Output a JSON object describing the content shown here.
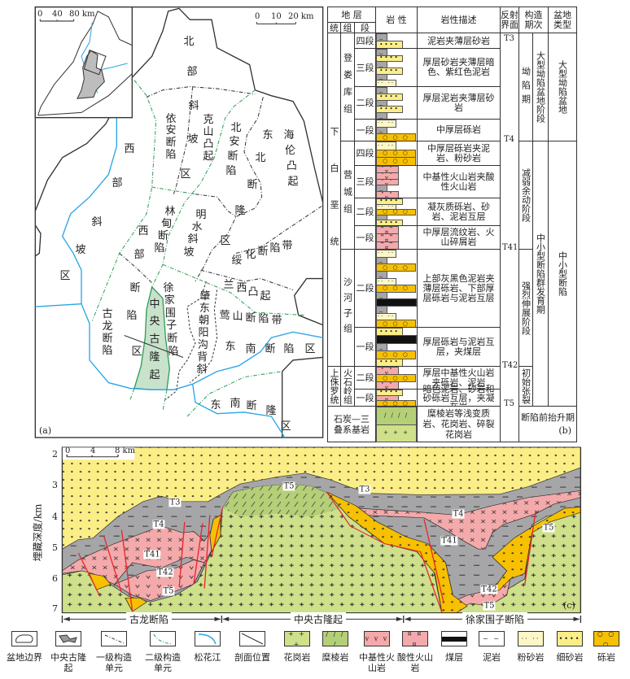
{
  "map": {
    "panel_label": "(a)",
    "inset_scale": [
      "0",
      "40",
      "80 km"
    ],
    "main_scale": [
      "0",
      "10",
      "20 km"
    ],
    "regions": [
      "北部斜坡区",
      "西部斜坡区",
      "依安断陷",
      "克山凸起",
      "北安断陷",
      "东北断隆区",
      "海伦凸起",
      "林甸断陷",
      "明水斜坡",
      "西部断陷区",
      "绥化断陷带",
      "兰西凸起",
      "古龙断陷",
      "中央古隆起",
      "徐家围子断陷",
      "肇东朝阳沟背斜",
      "莺山断陷带",
      "东南断陷区",
      "东南断隆区"
    ]
  },
  "table": {
    "panel_label": "(b)",
    "headers": {
      "strata": "地 层",
      "series": "统",
      "formation": "组",
      "member": "段",
      "lithology": "岩 性",
      "description": "岩性描述",
      "reflector": "反射界面",
      "tectonic": "构造期次",
      "basin_type": "盆地类型"
    },
    "series": [
      "下白垩统",
      "上侏罗统"
    ],
    "formations": [
      "登娄库组",
      "营城组",
      "沙河子组",
      "火石岭组"
    ],
    "rows": [
      {
        "member": "四段",
        "description": "泥岩夹薄层砂岩",
        "lith": [
          "mud",
          "fine"
        ]
      },
      {
        "member": "三段",
        "description": "厚层砂岩夹薄层暗色、紫红色泥岩",
        "lith": [
          "mud",
          "fine",
          "mud",
          "fine",
          "mud",
          "silt"
        ]
      },
      {
        "member": "二段",
        "description": "厚层泥岩夹薄层砂岩",
        "lith": [
          "mud",
          "fine",
          "mud",
          "fine",
          "mud"
        ]
      },
      {
        "member": "一段",
        "description": "中厚层砾岩",
        "lith": [
          "silt",
          "mud",
          "cong"
        ]
      },
      {
        "member": "四段",
        "description": "中厚层砾岩夹泥岩、粉砂岩",
        "lith": [
          "silt",
          "cong",
          "cong"
        ]
      },
      {
        "member": "三段",
        "description": "中基性火山岩夹酸性火山岩",
        "lith": [
          "volc",
          "volc",
          "volc",
          "mud",
          "volc"
        ]
      },
      {
        "member": "二段",
        "description": "凝灰质砾岩、砂岩、泥岩互层",
        "lith": [
          "fine",
          "silt",
          "cong",
          "mud",
          "fine"
        ]
      },
      {
        "member": "一段",
        "description": "中厚层流纹岩、火山碎屑岩",
        "lith": [
          "acid",
          "acid",
          "acid"
        ]
      },
      {
        "member": "二段",
        "description": "上部灰黑色泥岩夹薄层砾岩、下部厚层砾岩与泥岩互层",
        "lith": [
          "silt",
          "mud",
          "cong",
          "mud",
          "silt",
          "cong",
          "mud",
          "coal",
          "mud",
          "silt",
          "cong"
        ]
      },
      {
        "member": "一段",
        "description": "厚层砾岩与泥岩互层，夹煤层",
        "lith": [
          "fine",
          "coal",
          "mud",
          "cong",
          "fine"
        ]
      },
      {
        "member": "二段",
        "description": "厚层中基性火山岩夹砾岩、泥岩",
        "lith": [
          "volc",
          "cong",
          "volc"
        ]
      },
      {
        "member": "一段",
        "description": "暗色泥岩、砂岩和砂砾岩互层，夹凝灰岩",
        "lith": [
          "fine",
          "acid",
          "cong"
        ]
      }
    ],
    "basement": {
      "name": "石炭—三叠系基岩",
      "description": "糜棱岩等浅变质岩、花岗岩、碎裂花岗岩",
      "lith": [
        "mylonite",
        "granite"
      ]
    },
    "reflectors": [
      "T3",
      "T4",
      "T41",
      "T42",
      "T5"
    ],
    "tectonic_periods": [
      "坳陷期",
      "减弱余动阶段",
      "强烈伸展阶段",
      "初始张裂"
    ],
    "tectonic_stages": [
      "大型坳陷盆地阶段",
      "中小型断陷群发育期",
      "断陷前抬升期"
    ],
    "basin_types": [
      "大型坳陷盆地",
      "中小型断陷"
    ]
  },
  "section": {
    "panel_label": "(c)",
    "y_axis_label": "埋藏深度/km",
    "y_ticks": [
      "2",
      "3",
      "4",
      "5",
      "6",
      "7"
    ],
    "scale": [
      "0",
      "4",
      "8 km"
    ],
    "units": [
      "古龙断陷",
      "中央古隆起",
      "徐家围子断陷"
    ],
    "reflector_labels": [
      "T3",
      "T4",
      "T41",
      "T42",
      "T5",
      "T5",
      "T3",
      "T4",
      "T41",
      "T42",
      "T5",
      "T5"
    ]
  },
  "legend": [
    {
      "label": "盆地边界",
      "key": "boundary"
    },
    {
      "label": "中央古隆起",
      "key": "uplift"
    },
    {
      "label": "一级构造单元",
      "key": "first"
    },
    {
      "label": "二级构造单元",
      "key": "second"
    },
    {
      "label": "松花江",
      "key": "river"
    },
    {
      "label": "剖面位置",
      "key": "section"
    },
    {
      "label": "花岗岩",
      "key": "granite"
    },
    {
      "label": "糜棱岩",
      "key": "mylonite"
    },
    {
      "label": "中基性火山岩",
      "key": "volc"
    },
    {
      "label": "酸性火山岩",
      "key": "acid"
    },
    {
      "label": "煤层",
      "key": "coal"
    },
    {
      "label": "泥岩",
      "key": "mud"
    },
    {
      "label": "粉砂岩",
      "key": "silt"
    },
    {
      "label": "细砂岩",
      "key": "fine"
    },
    {
      "label": "砾岩",
      "key": "cong"
    }
  ],
  "colors": {
    "granite": "#cfe08a",
    "mylonite": "#b5cf77",
    "volcanic": "#f4a9ab",
    "mudstone": "#a6a6a8",
    "fine_sandstone": "#fbee86",
    "siltstone": "#fdf6c6",
    "conglomerate": "#f7c000",
    "river": "#2aa6e6",
    "second_order": "#2e9e55",
    "uplift": "#c9e2cc",
    "fault": "#e8262b"
  }
}
